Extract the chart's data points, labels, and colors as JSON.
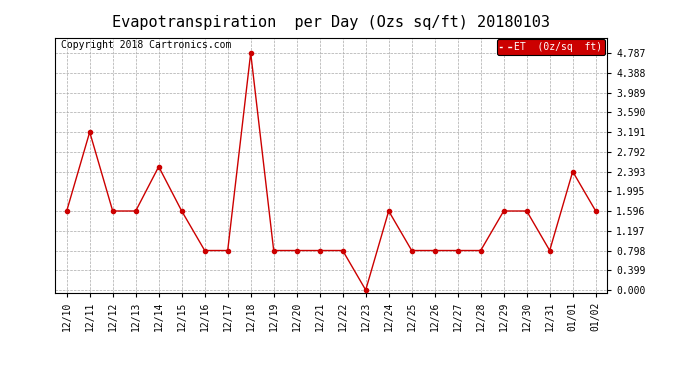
{
  "title": "Evapotranspiration  per Day (Ozs sq/ft) 20180103",
  "copyright_text": "Copyright 2018 Cartronics.com",
  "legend_label": "ET  (0z/sq  ft)",
  "x_labels": [
    "12/10",
    "12/11",
    "12/12",
    "12/13",
    "12/14",
    "12/15",
    "12/16",
    "12/17",
    "12/18",
    "12/19",
    "12/20",
    "12/21",
    "12/22",
    "12/23",
    "12/24",
    "12/25",
    "12/26",
    "12/27",
    "12/28",
    "12/29",
    "12/30",
    "12/31",
    "01/01",
    "01/02"
  ],
  "y_values": [
    1.596,
    3.191,
    1.596,
    1.596,
    2.492,
    1.596,
    0.798,
    0.798,
    4.787,
    0.798,
    0.798,
    0.798,
    0.798,
    0.0,
    1.596,
    0.798,
    0.798,
    0.798,
    0.798,
    1.596,
    1.596,
    0.798,
    2.393,
    1.596
  ],
  "y_ticks": [
    0.0,
    0.399,
    0.798,
    1.197,
    1.596,
    1.995,
    2.393,
    2.792,
    3.191,
    3.59,
    3.989,
    4.388,
    4.787
  ],
  "ylim": [
    -0.05,
    5.1
  ],
  "line_color": "#cc0000",
  "marker_color": "#cc0000",
  "background_color": "#ffffff",
  "grid_color": "#aaaaaa",
  "title_fontsize": 11,
  "copyright_fontsize": 7,
  "tick_fontsize": 7,
  "legend_bg": "#cc0000",
  "legend_text_color": "#ffffff"
}
